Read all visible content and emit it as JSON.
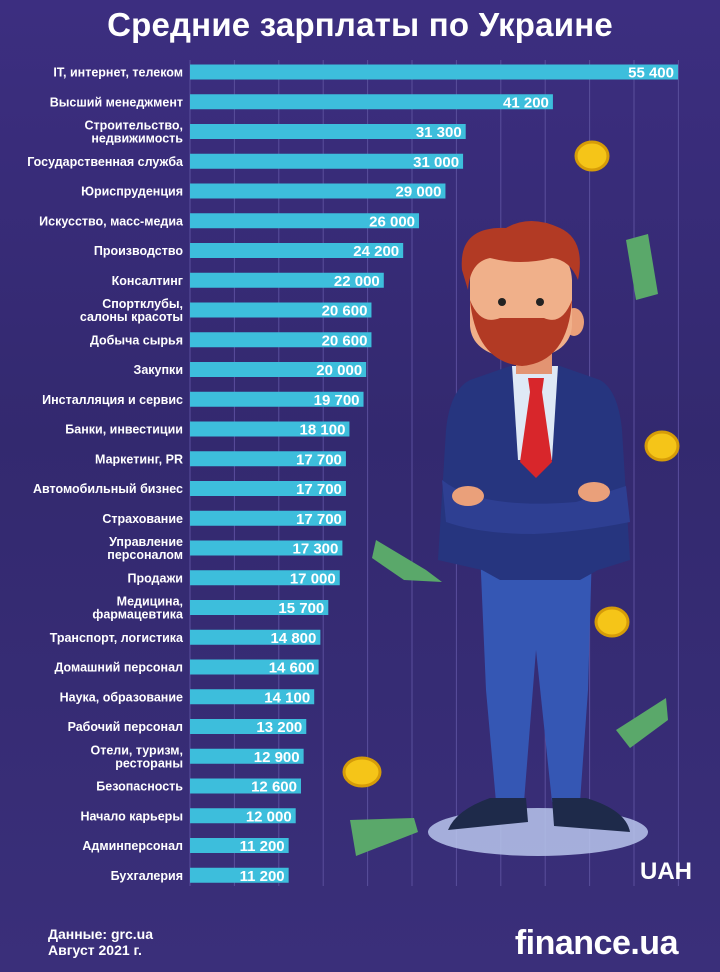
{
  "title": "Средние зарплаты по Украине",
  "unit": "UAH",
  "source_line1": "Данные: grc.ua",
  "source_line2": "Август 2021 г.",
  "logo": "finance.ua",
  "colors": {
    "bar": "#3dbedc",
    "background": "#35296f",
    "coin": "#f5c518",
    "banknote": "#5aa86a",
    "tie": "#d8262b",
    "suit": "#26357f"
  },
  "chart_data": {
    "type": "bar",
    "orientation": "horizontal",
    "title": "Средние зарплаты по Украине",
    "unit": "UAH",
    "grid": true,
    "categories": [
      [
        "IT, интернет, телеком"
      ],
      [
        "Высший менеджмент"
      ],
      [
        "Строительство,",
        "недвижимость"
      ],
      [
        "Государственная служба"
      ],
      [
        "Юриспруденция"
      ],
      [
        "Искусство, масс-медиа"
      ],
      [
        "Производство"
      ],
      [
        "Консалтинг"
      ],
      [
        "Спортклубы,",
        "салоны красоты"
      ],
      [
        "Добыча сырья"
      ],
      [
        "Закупки"
      ],
      [
        "Инсталляция и сервис"
      ],
      [
        "Банки, инвестиции"
      ],
      [
        "Маркетинг, PR"
      ],
      [
        "Автомобильный бизнес"
      ],
      [
        "Страхование"
      ],
      [
        "Управление",
        "персоналом"
      ],
      [
        "Продажи"
      ],
      [
        "Медицина,",
        "фармацевтика"
      ],
      [
        "Транспорт, логистика"
      ],
      [
        "Домашний персонал"
      ],
      [
        "Наука, образование"
      ],
      [
        "Рабочий персонал"
      ],
      [
        "Отели, туризм,",
        "рестораны"
      ],
      [
        "Безопасность"
      ],
      [
        "Начало карьеры"
      ],
      [
        "Админперсонал"
      ],
      [
        "Бухгалерия"
      ]
    ],
    "values": [
      55400,
      41200,
      31300,
      31000,
      29000,
      26000,
      24200,
      22000,
      20600,
      20600,
      20000,
      19700,
      18100,
      17700,
      17700,
      17700,
      17300,
      17000,
      15700,
      14800,
      14600,
      14100,
      13200,
      12900,
      12600,
      12000,
      11200,
      11200
    ],
    "value_labels": [
      "55 400",
      "41 200",
      "31 300",
      "31 000",
      "29 000",
      "26 000",
      "24 200",
      "22 000",
      "20 600",
      "20 600",
      "20 000",
      "19 700",
      "18 100",
      "17 700",
      "17 700",
      "17 700",
      "17 300",
      "17 000",
      "15 700",
      "14 800",
      "14 600",
      "14 100",
      "13 200",
      "12 900",
      "12 600",
      "12 000",
      "11 200",
      "11 200"
    ]
  }
}
